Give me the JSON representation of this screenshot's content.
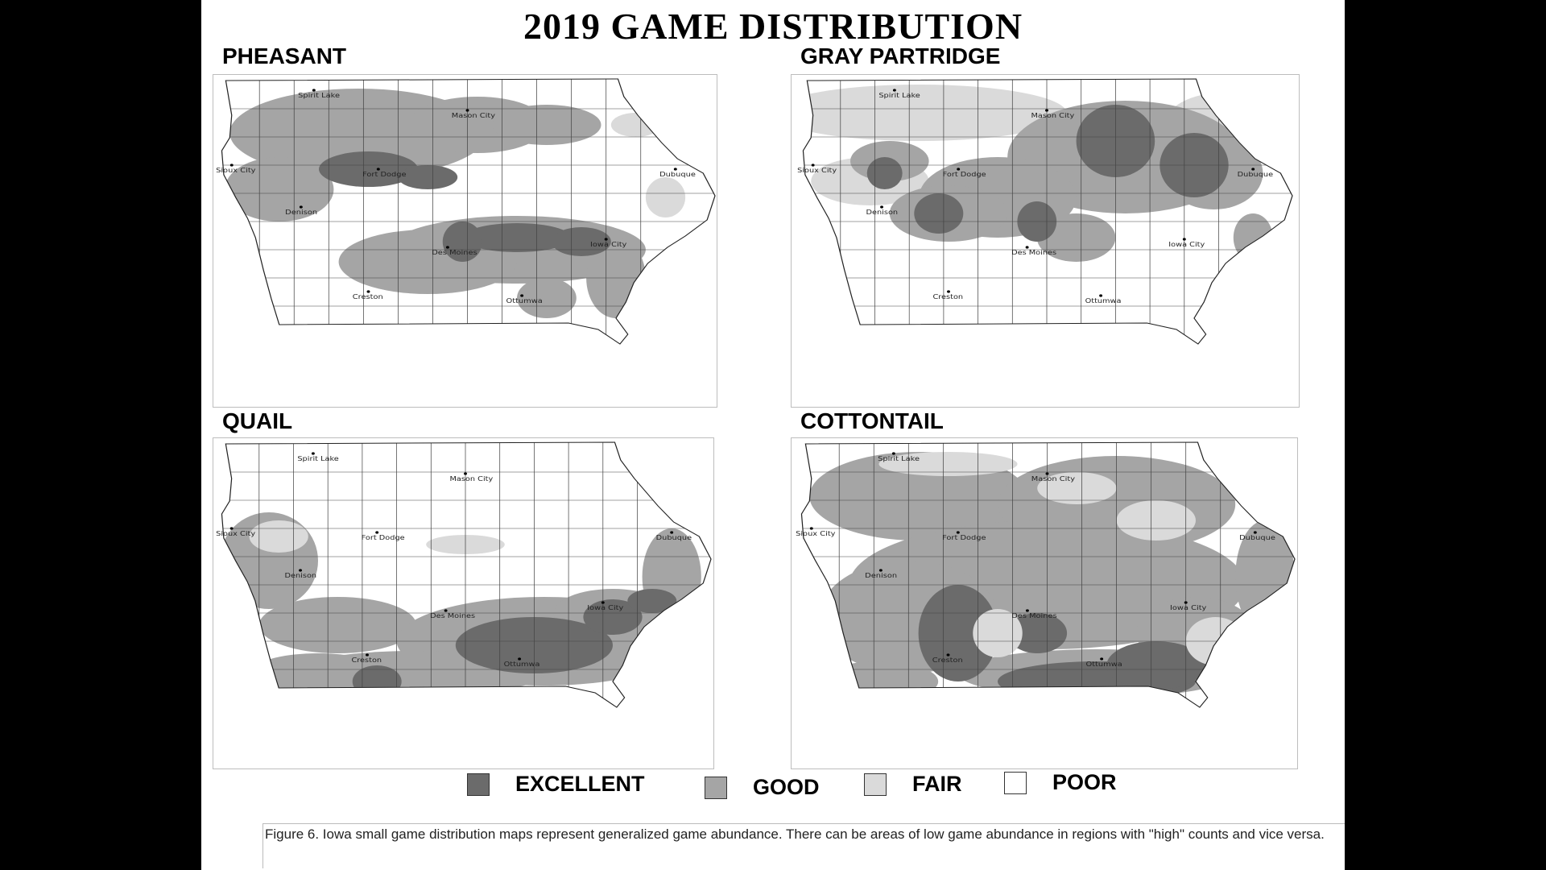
{
  "title": "2019 GAME DISTRIBUTION",
  "maps": [
    {
      "label": "PHEASANT"
    },
    {
      "label": "GRAY PARTRIDGE"
    },
    {
      "label": "QUAIL"
    },
    {
      "label": "COTTONTAIL"
    }
  ],
  "cities": [
    "Spirit Lake",
    "Mason City",
    "Sioux City",
    "Fort Dodge",
    "Dubuque",
    "Denison",
    "Des Moines",
    "Iowa City",
    "Creston",
    "Ottumwa"
  ],
  "legend": [
    {
      "label": "EXCELLENT",
      "color": "#6b6b6b"
    },
    {
      "label": "GOOD",
      "color": "#a5a5a5"
    },
    {
      "label": "FAIR",
      "color": "#dadada"
    },
    {
      "label": "POOR",
      "color": "#ffffff"
    }
  ],
  "caption": "Figure 6.  Iowa small game distribution maps represent generalized game abundance. There can be areas of low game abundance in regions with \"high\" counts and vice versa."
}
